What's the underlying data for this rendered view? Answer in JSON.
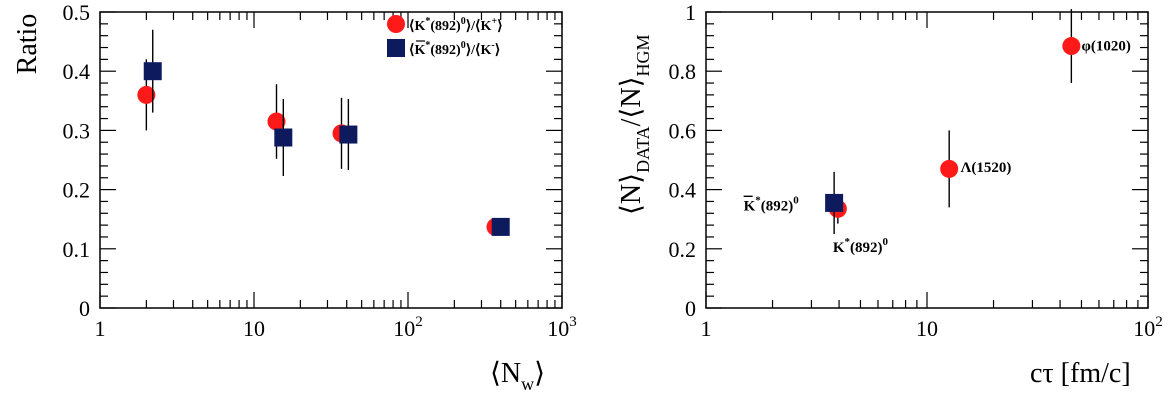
{
  "colors": {
    "red": "#ff1a1a",
    "navy": "#0d1a5e"
  },
  "chart_data": [
    {
      "type": "scatter",
      "xscale": "log",
      "xlim": [
        1,
        1000
      ],
      "ylim": [
        0,
        0.5
      ],
      "ylabel": "Ratio",
      "xlabel": "⟨N",
      "xlabel_sub": "w",
      "xlabel_close": "⟩",
      "x_ticks": [
        {
          "v": 1,
          "label": "1",
          "sup": ""
        },
        {
          "v": 10,
          "label": "10",
          "sup": ""
        },
        {
          "v": 100,
          "label": "10",
          "sup": "2"
        },
        {
          "v": 1000,
          "label": "10",
          "sup": "3"
        }
      ],
      "y_ticks": [
        "0",
        "0.1",
        "0.2",
        "0.3",
        "0.4",
        "0.5"
      ],
      "legend": [
        {
          "marker": "circle",
          "open": "⟨K",
          "sup": "*",
          "mid": "(892)",
          "sup2": "0",
          "rest": "⟩/⟨K",
          "sup3": "+",
          "close": "⟩",
          "bar": false
        },
        {
          "marker": "square",
          "open": "⟨K",
          "sup": "*",
          "mid": "(892)",
          "sup2": "0",
          "rest": "⟩/⟨K",
          "sup3": "-",
          "close": "⟩",
          "bar": true
        }
      ],
      "series": [
        {
          "marker": "circle",
          "points": [
            {
              "x": 2.0,
              "y": 0.36,
              "err": 0.06
            },
            {
              "x": 14.0,
              "y": 0.315,
              "err": 0.063
            },
            {
              "x": 37.0,
              "y": 0.295,
              "err": 0.06
            },
            {
              "x": 370.0,
              "y": 0.137,
              "err": 0.0
            }
          ]
        },
        {
          "marker": "square",
          "points": [
            {
              "x": 2.2,
              "y": 0.4,
              "err": 0.07
            },
            {
              "x": 15.5,
              "y": 0.288,
              "err": 0.065
            },
            {
              "x": 41.0,
              "y": 0.293,
              "err": 0.06
            },
            {
              "x": 400.0,
              "y": 0.137,
              "err": 0.0
            }
          ]
        }
      ]
    },
    {
      "type": "scatter",
      "xscale": "log",
      "xlim": [
        1,
        100
      ],
      "ylim": [
        0,
        1
      ],
      "ylabel_parts": [
        "⟨N⟩",
        "DATA",
        "/⟨N⟩",
        "HGM"
      ],
      "xlabel": "cτ [fm/c]",
      "x_ticks": [
        {
          "v": 1,
          "label": "1",
          "sup": ""
        },
        {
          "v": 10,
          "label": "10",
          "sup": ""
        },
        {
          "v": 100,
          "label": "10",
          "sup": "2"
        }
      ],
      "y_ticks": [
        "0",
        "0.2",
        "0.4",
        "0.6",
        "0.8",
        "1"
      ],
      "series": [
        {
          "marker": "circle",
          "points": [
            {
              "x": 3.95,
              "y": 0.335,
              "err": 0.05,
              "label": "K",
              "sup": "*",
              "rest": "(892)",
              "sup2": "0",
              "bar": false,
              "lx": 3.75,
              "ly": 0.19,
              "anchor": "start"
            },
            {
              "x": 12.6,
              "y": 0.47,
              "err": 0.13,
              "label": "Λ",
              "sup": "",
              "rest": "(1520)",
              "sup2": "",
              "bar": false,
              "lx": 14.2,
              "ly": 0.46,
              "anchor": "start"
            },
            {
              "x": 45.0,
              "y": 0.885,
              "err": 0.125,
              "label": "φ",
              "sup": "",
              "rest": "(1020)",
              "sup2": "",
              "bar": false,
              "lx": 50.0,
              "ly": 0.87,
              "anchor": "start"
            }
          ]
        },
        {
          "marker": "square",
          "points": [
            {
              "x": 3.8,
              "y": 0.355,
              "err": 0.105,
              "label": "K",
              "sup": "*",
              "rest": "(892)",
              "sup2": "0",
              "bar": true,
              "lx": 1.48,
              "ly": 0.33,
              "anchor": "start"
            }
          ]
        }
      ]
    }
  ]
}
